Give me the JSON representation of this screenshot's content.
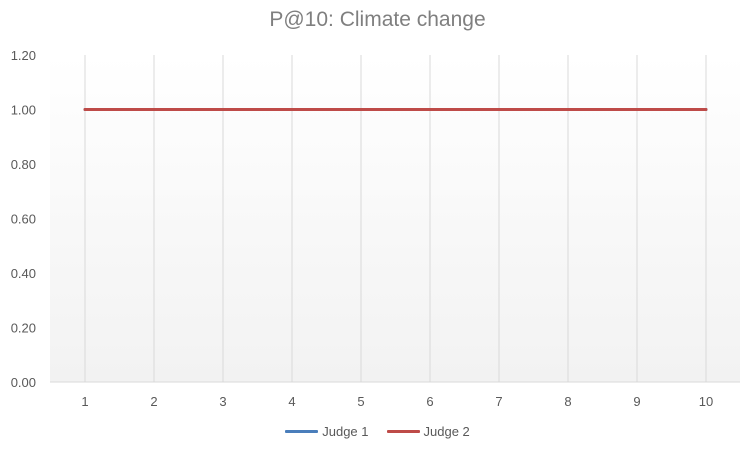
{
  "chart_data": {
    "type": "line",
    "title": "P@10: Climate change",
    "xlabel": "",
    "ylabel": "",
    "x": [
      1,
      2,
      3,
      4,
      5,
      6,
      7,
      8,
      9,
      10
    ],
    "x_tick_labels": [
      "1",
      "2",
      "3",
      "4",
      "5",
      "6",
      "7",
      "8",
      "9",
      "10"
    ],
    "y_tick_labels": [
      "0.00",
      "0.20",
      "0.40",
      "0.60",
      "0.80",
      "1.00",
      "1.20"
    ],
    "ylim": [
      0,
      1.2
    ],
    "grid": "vertical",
    "legend_position": "bottom",
    "series": [
      {
        "name": "Judge 1",
        "color": "#4a7ebb",
        "values": [
          1,
          1,
          1,
          1,
          1,
          1,
          1,
          1,
          1,
          1
        ]
      },
      {
        "name": "Judge 2",
        "color": "#be4b48",
        "values": [
          1,
          1,
          1,
          1,
          1,
          1,
          1,
          1,
          1,
          1
        ]
      }
    ]
  }
}
